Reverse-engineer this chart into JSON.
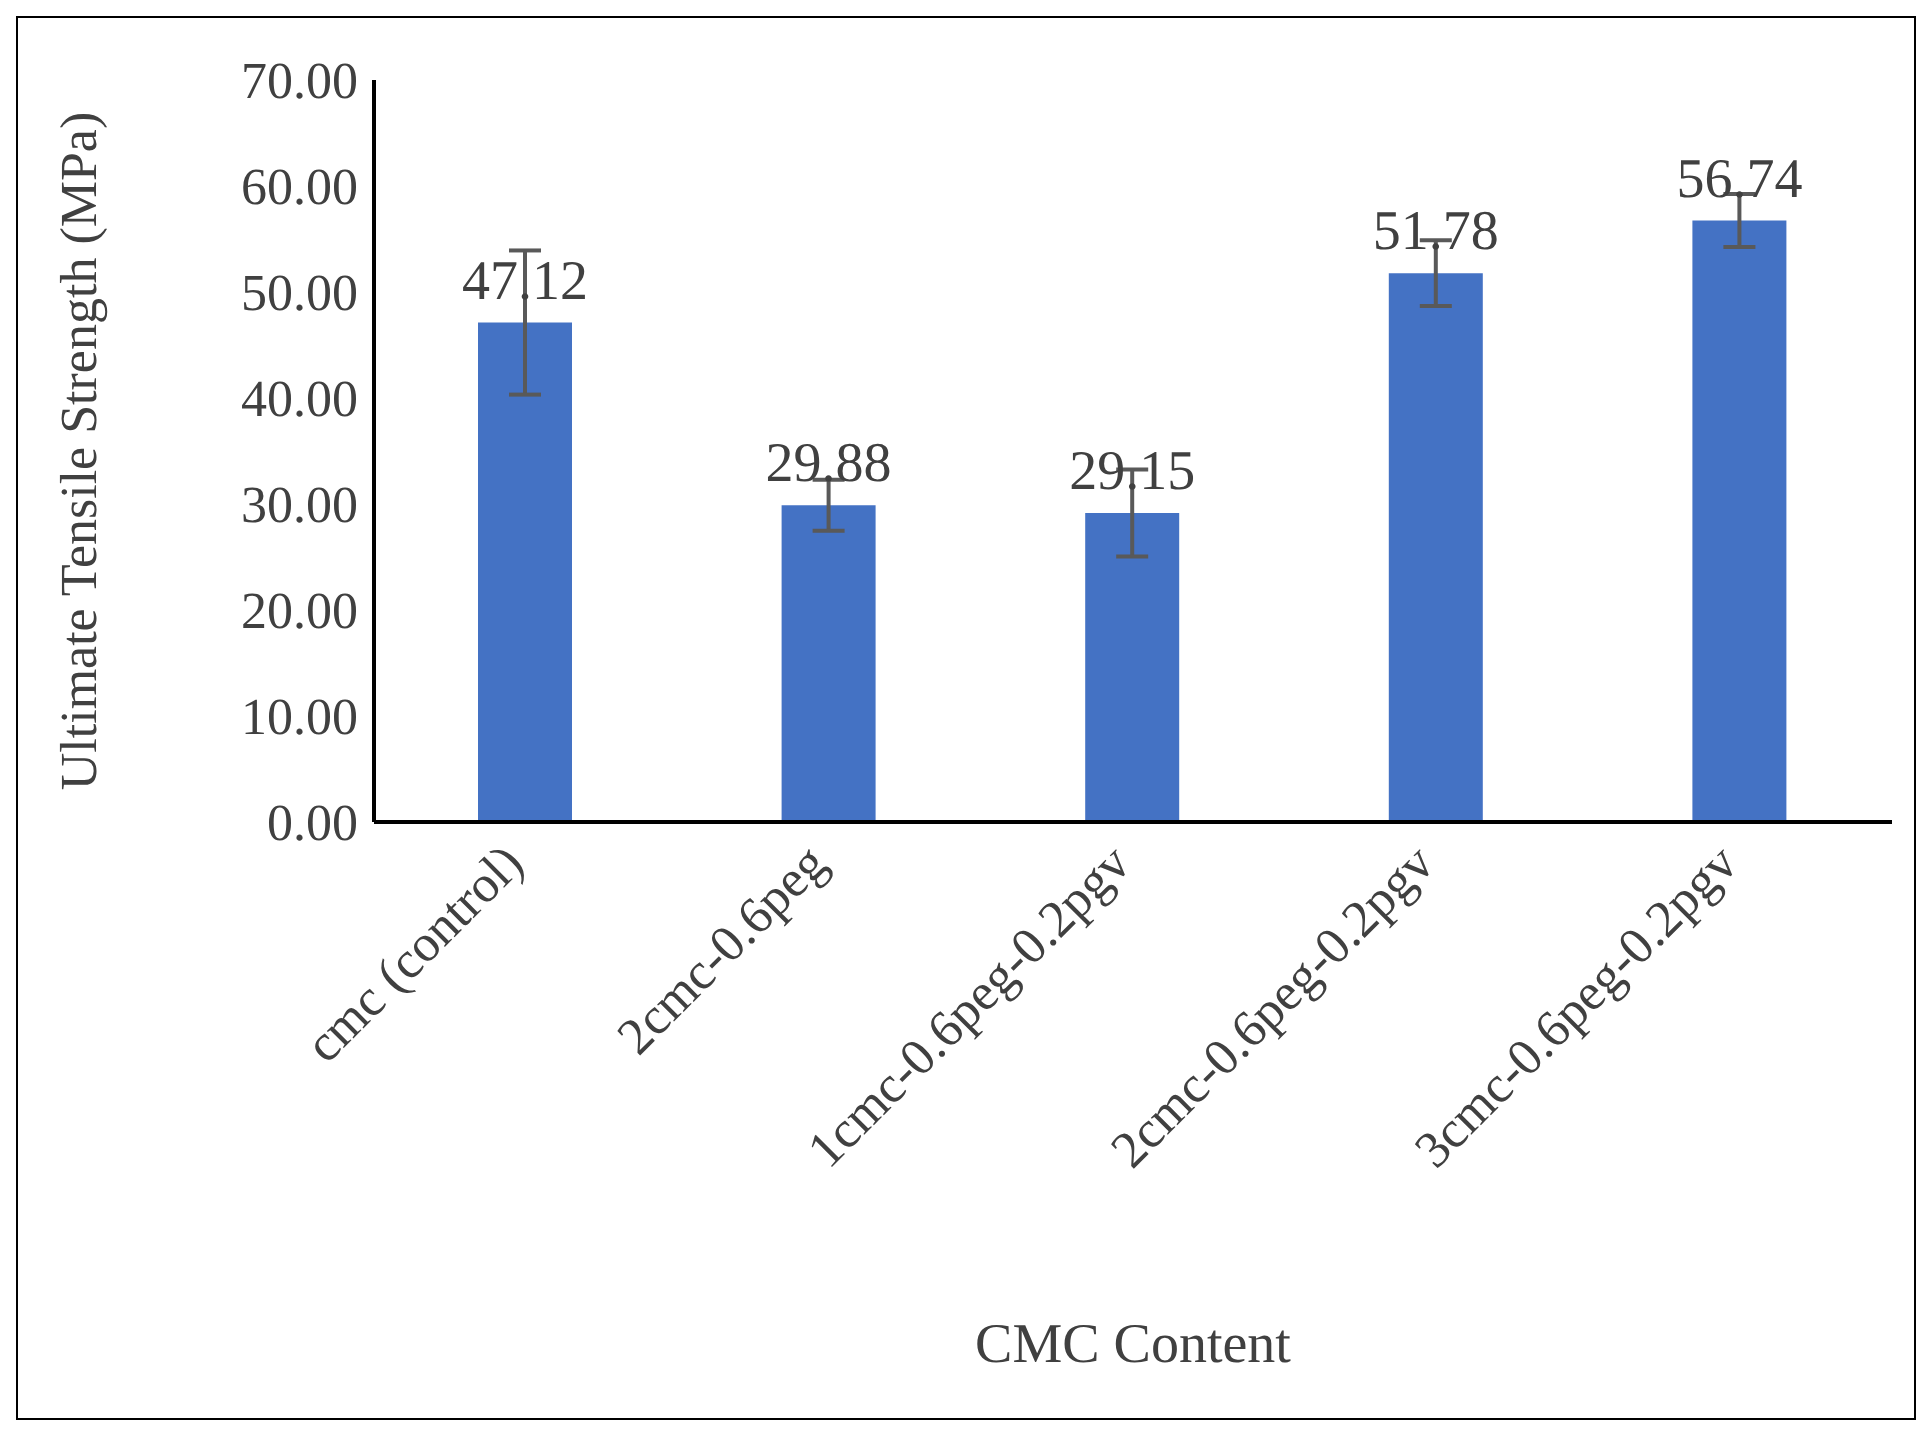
{
  "chart_data": {
    "type": "bar",
    "xlabel": "CMC Content",
    "ylabel": "Ultimate Tensile Strength (MPa)",
    "categories": [
      "cmc (control)",
      "2cmc-0.6peg",
      "1cmc-0.6peg-0.2pgv",
      "2cmc-0.6peg-0.2pgv",
      "3cmc-0.6peg-0.2pgv"
    ],
    "values": [
      47.12,
      29.88,
      29.15,
      51.78,
      56.74
    ],
    "errors": [
      6.8,
      2.4,
      4.1,
      3.1,
      2.5
    ],
    "color": "#4472c4",
    "ylim": [
      0,
      70
    ],
    "yticks": [
      {
        "value": 0,
        "label": "0.00"
      },
      {
        "value": 10,
        "label": "10.00"
      },
      {
        "value": 20,
        "label": "20.00"
      },
      {
        "value": 30,
        "label": "30.00"
      },
      {
        "value": 40,
        "label": "40.00"
      },
      {
        "value": 50,
        "label": "50.00"
      },
      {
        "value": 60,
        "label": "60.00"
      },
      {
        "value": 70,
        "label": "70.00"
      }
    ],
    "data_labels": true,
    "grid": false,
    "legend": false
  }
}
